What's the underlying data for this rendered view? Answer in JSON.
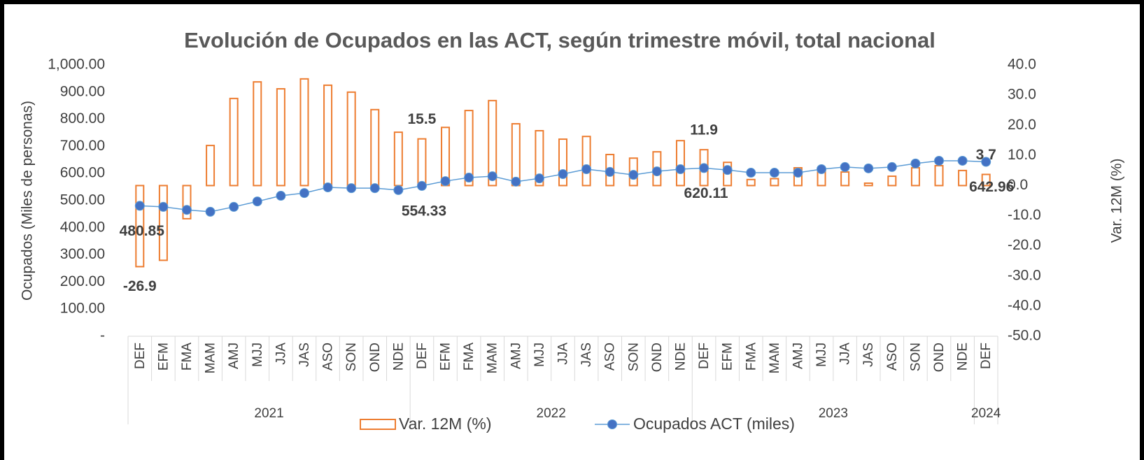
{
  "chart_data": {
    "type": "bar-line",
    "title": "Evolución de Ocupados en las ACT, según trimestre móvil, total nacional",
    "y_label": "Ocupados (Miles de personas)",
    "y2_label": "Var. 12M (%)",
    "categories": [
      "DEF",
      "EFM",
      "FMA",
      "MAM",
      "AMJ",
      "MJJ",
      "JJA",
      "JAS",
      "ASO",
      "SON",
      "OND",
      "NDE",
      "DEF",
      "EFM",
      "FMA",
      "MAM",
      "AMJ",
      "MJJ",
      "JJA",
      "JAS",
      "ASO",
      "SON",
      "OND",
      "NDE",
      "DEF",
      "EFM",
      "FMA",
      "MAM",
      "AMJ",
      "MJJ",
      "JJA",
      "JAS",
      "ASO",
      "SON",
      "OND",
      "NDE",
      "DEF"
    ],
    "year_labels": [
      "2021",
      null,
      null,
      null,
      null,
      null,
      null,
      null,
      null,
      null,
      null,
      null,
      "2022",
      null,
      null,
      null,
      null,
      null,
      null,
      null,
      null,
      null,
      null,
      null,
      "2023",
      null,
      null,
      null,
      null,
      null,
      null,
      null,
      null,
      null,
      null,
      null,
      "2024"
    ],
    "ylim": [
      0,
      1000
    ],
    "yticks": [
      {
        "value": 0,
        "label": "-"
      },
      {
        "value": 100,
        "label": "100.00"
      },
      {
        "value": 200,
        "label": "200.00"
      },
      {
        "value": 300,
        "label": "300.00"
      },
      {
        "value": 400,
        "label": "400.00"
      },
      {
        "value": 500,
        "label": "500.00"
      },
      {
        "value": 600,
        "label": "600.00"
      },
      {
        "value": 700,
        "label": "700.00"
      },
      {
        "value": 800,
        "label": "800.00"
      },
      {
        "value": 900,
        "label": "900.00"
      },
      {
        "value": 1000,
        "label": "1,000.00"
      }
    ],
    "y2lim": [
      -50,
      40
    ],
    "y2ticks": [
      {
        "value": -50,
        "label": "-50.0"
      },
      {
        "value": -40,
        "label": "-40.0"
      },
      {
        "value": -30,
        "label": "-30.0"
      },
      {
        "value": -20,
        "label": "-20.0"
      },
      {
        "value": -10,
        "label": "-10.0"
      },
      {
        "value": 0,
        "label": "0.0"
      },
      {
        "value": 10,
        "label": "10.0"
      },
      {
        "value": 20,
        "label": "20.0"
      },
      {
        "value": 30,
        "label": "30.0"
      },
      {
        "value": 40,
        "label": "40.0"
      }
    ],
    "legend": "bottom",
    "series": [
      {
        "name": "Var. 12M (%)",
        "type": "bar",
        "axis": "y2",
        "color": "#ed7d31",
        "values": [
          -26.9,
          -24.8,
          -11.0,
          13.3,
          28.9,
          34.4,
          32.1,
          35.4,
          33.3,
          31.0,
          25.2,
          17.7,
          15.5,
          19.3,
          24.9,
          28.2,
          20.5,
          18.2,
          15.4,
          16.3,
          10.3,
          9.1,
          11.2,
          14.9,
          11.9,
          7.7,
          2.0,
          2.3,
          5.9,
          5.2,
          4.5,
          0.8,
          3.1,
          5.9,
          6.6,
          5.0,
          3.7
        ],
        "value_labels": [
          "-26.9",
          null,
          null,
          null,
          null,
          null,
          null,
          null,
          null,
          null,
          null,
          null,
          "15.5",
          null,
          null,
          null,
          null,
          null,
          null,
          null,
          null,
          null,
          null,
          null,
          "11.9",
          null,
          null,
          null,
          null,
          null,
          null,
          null,
          null,
          null,
          null,
          null,
          "3.7"
        ]
      },
      {
        "name": "Ocupados ACT (miles)",
        "type": "line",
        "axis": "y",
        "color": "#5b9bd5",
        "marker_color": "#4472c4",
        "values": [
          480.85,
          477,
          466,
          459,
          477,
          497,
          518,
          528,
          549,
          546,
          546,
          539,
          554.33,
          572,
          585,
          590,
          570,
          582,
          598,
          616,
          606,
          595,
          608,
          616,
          620.11,
          613,
          603,
          603,
          603,
          616,
          624,
          619,
          624,
          637,
          647,
          647,
          642.96
        ],
        "value_labels": [
          "480.85",
          null,
          null,
          null,
          null,
          null,
          null,
          null,
          null,
          null,
          null,
          null,
          "554.33",
          null,
          null,
          null,
          null,
          null,
          null,
          null,
          null,
          null,
          null,
          null,
          "620.11",
          null,
          null,
          null,
          null,
          null,
          null,
          null,
          null,
          null,
          null,
          null,
          "642.96"
        ]
      }
    ]
  }
}
